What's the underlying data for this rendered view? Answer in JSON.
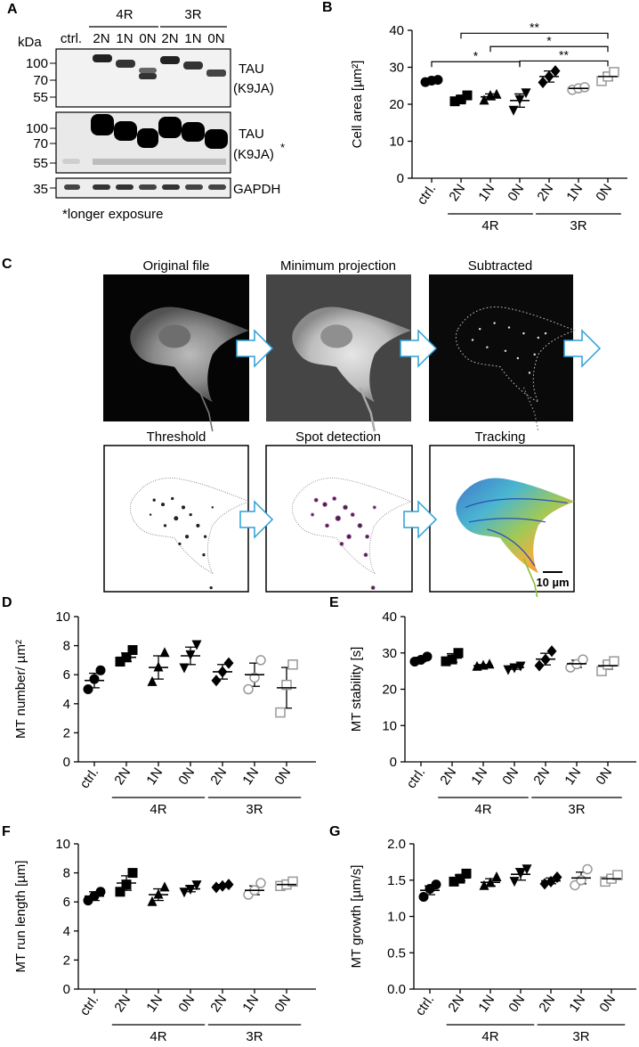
{
  "panels": {
    "A": {
      "letter": "A",
      "kda": "kDa",
      "groups": [
        "4R",
        "3R"
      ],
      "lanes": [
        "ctrl.",
        "2N",
        "1N",
        "0N",
        "2N",
        "1N",
        "0N"
      ],
      "blot1": {
        "markers": [
          "100",
          "70",
          "55"
        ],
        "label_line1": "TAU",
        "label_line2": "(K9JA)"
      },
      "blot2": {
        "markers": [
          "100",
          "70",
          "55"
        ],
        "label_line1": "TAU",
        "label_line2": "(K9JA)",
        "asterisk": "*"
      },
      "blot3": {
        "markers": [
          "35"
        ],
        "label": "GAPDH"
      },
      "footnote": "*longer exposure"
    },
    "B": {
      "letter": "B"
    },
    "C": {
      "letter": "C",
      "images": [
        "Original file",
        "Minimum projection",
        "Subtracted",
        "Threshold",
        "Spot detection",
        "Tracking"
      ],
      "scalebar": "10 µm"
    },
    "D": {
      "letter": "D"
    },
    "E": {
      "letter": "E"
    },
    "F": {
      "letter": "F"
    },
    "G": {
      "letter": "G"
    }
  },
  "chart_data": [
    {
      "panel": "B",
      "type": "scatter",
      "ylabel": "Cell area [µm²]",
      "ylim": [
        0,
        40
      ],
      "yticks": [
        0,
        10,
        20,
        30,
        40
      ],
      "categories": [
        "ctrl.",
        "2N",
        "1N",
        "0N",
        "2N",
        "1N",
        "0N"
      ],
      "groups": [
        {
          "name": "4R",
          "from": 1,
          "to": 3
        },
        {
          "name": "3R",
          "from": 4,
          "to": 6
        }
      ],
      "markers": [
        "circle",
        "square",
        "triangle",
        "triangle-down",
        "diamond",
        "circle-open",
        "square-open"
      ],
      "mean": [
        26.3,
        21.5,
        22.0,
        21.0,
        27.5,
        24.3,
        27.5
      ],
      "sem": [
        0.3,
        0.8,
        0.8,
        1.8,
        1.5,
        0.4,
        1.0
      ],
      "points": [
        [
          26.0,
          26.4,
          26.6
        ],
        [
          20.8,
          21.3,
          22.4
        ],
        [
          21.0,
          22.3,
          22.6
        ],
        [
          18.5,
          21.4,
          23.2
        ],
        [
          25.9,
          27.5,
          29.0
        ],
        [
          23.9,
          24.3,
          24.6
        ],
        [
          26.3,
          27.5,
          28.7
        ]
      ],
      "significance": [
        {
          "from": 1,
          "to": 6,
          "label": "**",
          "y": 39.2
        },
        {
          "from": 2,
          "to": 6,
          "label": "*",
          "y": 35.6
        },
        {
          "from": 3,
          "to": 6,
          "label": "**",
          "y": 31.7
        },
        {
          "from": 0,
          "to": 3,
          "label": "*",
          "y": 31.5
        }
      ]
    },
    {
      "panel": "D",
      "type": "scatter",
      "ylabel": "MT number/ µm²",
      "ylim": [
        0,
        10
      ],
      "yticks": [
        0,
        2,
        4,
        6,
        8,
        10
      ],
      "categories": [
        "ctrl.",
        "2N",
        "1N",
        "0N",
        "2N",
        "1N",
        "0N"
      ],
      "groups": [
        {
          "name": "4R",
          "from": 1,
          "to": 3
        },
        {
          "name": "3R",
          "from": 4,
          "to": 6
        }
      ],
      "markers": [
        "circle",
        "square",
        "triangle",
        "triangle-down",
        "diamond",
        "circle-open",
        "square-open"
      ],
      "mean": [
        5.6,
        7.2,
        6.5,
        7.3,
        6.2,
        6.0,
        5.1
      ],
      "sem": [
        0.5,
        0.3,
        0.8,
        0.6,
        0.5,
        0.8,
        1.4
      ],
      "points": [
        [
          5.0,
          5.7,
          6.3
        ],
        [
          6.9,
          7.2,
          7.7
        ],
        [
          5.5,
          6.5,
          7.5
        ],
        [
          6.5,
          7.4,
          8.1
        ],
        [
          5.6,
          6.2,
          6.8
        ],
        [
          5.0,
          5.8,
          7.0
        ],
        [
          3.4,
          5.3,
          6.7
        ]
      ]
    },
    {
      "panel": "E",
      "type": "scatter",
      "ylabel": "MT stability [s]",
      "ylim": [
        0,
        40
      ],
      "yticks": [
        0,
        10,
        20,
        30,
        40
      ],
      "categories": [
        "ctrl.",
        "2N",
        "1N",
        "0N",
        "2N",
        "1N",
        "0N"
      ],
      "groups": [
        {
          "name": "4R",
          "from": 1,
          "to": 3
        },
        {
          "name": "3R",
          "from": 4,
          "to": 6
        }
      ],
      "markers": [
        "circle",
        "square",
        "triangle",
        "triangle-down",
        "diamond",
        "circle-open",
        "square-open"
      ],
      "mean": [
        28.2,
        28.6,
        26.5,
        26.0,
        28.3,
        27.0,
        26.5
      ],
      "sem": [
        0.6,
        1.2,
        0.3,
        0.5,
        1.6,
        1.0,
        1.0
      ],
      "points": [
        [
          27.6,
          28.1,
          29.0
        ],
        [
          27.7,
          28.2,
          30.0
        ],
        [
          26.2,
          26.5,
          26.8
        ],
        [
          25.5,
          26.0,
          26.5
        ],
        [
          26.5,
          28.2,
          30.5
        ],
        [
          26.0,
          26.9,
          28.2
        ],
        [
          25.0,
          26.8,
          27.7
        ]
      ]
    },
    {
      "panel": "F",
      "type": "scatter",
      "ylabel": "MT run length [µm]",
      "ylim": [
        0,
        10
      ],
      "yticks": [
        0,
        2,
        4,
        6,
        8,
        10
      ],
      "categories": [
        "ctrl.",
        "2N",
        "1N",
        "0N",
        "2N",
        "1N",
        "0N"
      ],
      "groups": [
        {
          "name": "4R",
          "from": 1,
          "to": 3
        },
        {
          "name": "3R",
          "from": 4,
          "to": 6
        }
      ],
      "markers": [
        "circle",
        "square",
        "triangle",
        "triangle-down",
        "diamond",
        "circle-open",
        "square-open"
      ],
      "mean": [
        6.4,
        7.3,
        6.5,
        6.9,
        7.1,
        6.8,
        7.2
      ],
      "sem": [
        0.3,
        0.5,
        0.4,
        0.2,
        0.1,
        0.3,
        0.1
      ],
      "points": [
        [
          6.1,
          6.4,
          6.7
        ],
        [
          6.7,
          7.2,
          8.0
        ],
        [
          6.0,
          6.5,
          7.0
        ],
        [
          6.7,
          6.9,
          7.2
        ],
        [
          7.0,
          7.1,
          7.2
        ],
        [
          6.5,
          6.8,
          7.3
        ],
        [
          7.1,
          7.2,
          7.4
        ]
      ]
    },
    {
      "panel": "G",
      "type": "scatter",
      "ylabel": "MT growth [µm/s]",
      "ylim": [
        0,
        2
      ],
      "yticks": [
        "0.0",
        "0.5",
        "1.0",
        "1.5",
        "2.0"
      ],
      "categories": [
        "ctrl.",
        "2N",
        "1N",
        "0N",
        "2N",
        "1N",
        "0N"
      ],
      "groups": [
        {
          "name": "4R",
          "from": 1,
          "to": 3
        },
        {
          "name": "3R",
          "from": 4,
          "to": 6
        }
      ],
      "markers": [
        "circle",
        "square",
        "triangle",
        "triangle-down",
        "diamond",
        "circle-open",
        "square-open"
      ],
      "mean": [
        1.36,
        1.53,
        1.47,
        1.58,
        1.49,
        1.53,
        1.52
      ],
      "sem": [
        0.06,
        0.04,
        0.05,
        0.08,
        0.04,
        0.08,
        0.04
      ],
      "points": [
        [
          1.27,
          1.38,
          1.44
        ],
        [
          1.48,
          1.52,
          1.59
        ],
        [
          1.42,
          1.46,
          1.54
        ],
        [
          1.49,
          1.6,
          1.66
        ],
        [
          1.45,
          1.48,
          1.54
        ],
        [
          1.43,
          1.5,
          1.65
        ],
        [
          1.48,
          1.52,
          1.57
        ]
      ]
    }
  ]
}
